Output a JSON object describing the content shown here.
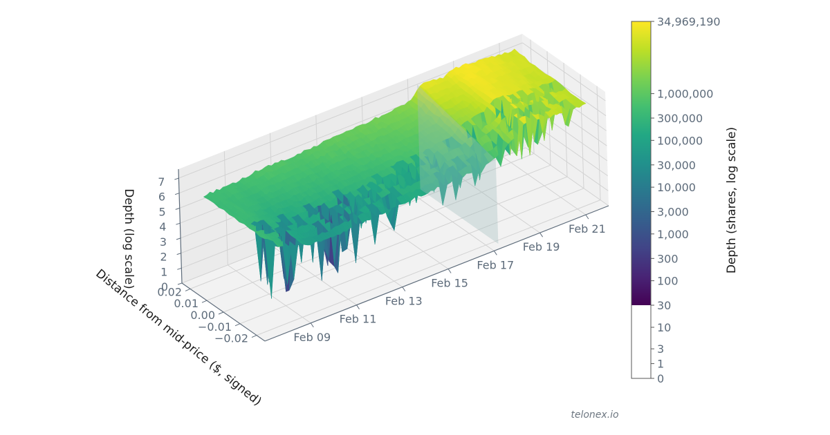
{
  "chart_data": {
    "type": "surface3d",
    "title": "",
    "x_axis": {
      "label": "",
      "ticks": [
        "Feb 09",
        "Feb 11",
        "Feb 13",
        "Feb 15",
        "Feb 17",
        "Feb 19",
        "Feb 21"
      ],
      "range": [
        "Feb 07",
        "Feb 22"
      ]
    },
    "y_axis": {
      "label": "Distance from mid-price ($, signed)",
      "ticks": [
        "0.02",
        "0.01",
        "0.00",
        "−0.01",
        "−0.02"
      ],
      "range": [
        -0.025,
        0.025
      ]
    },
    "z_axis": {
      "label": "Depth (log scale)",
      "ticks": [
        "0",
        "1",
        "2",
        "3",
        "4",
        "5",
        "6",
        "7"
      ],
      "range": [
        0,
        7.6
      ]
    },
    "surface_profile": {
      "x_days": [
        0,
        1.5,
        2.5,
        4,
        5,
        6,
        7,
        8,
        9,
        9.5,
        10,
        10.5,
        11,
        12,
        13,
        14
      ],
      "far_side_depth": [
        5.6,
        5.7,
        5.9,
        5.9,
        6.0,
        6.1,
        6.2,
        6.3,
        6.5,
        7.3,
        7.3,
        7.2,
        7.5,
        7.4,
        7.2,
        7.1
      ],
      "near_side_depth": [
        5.6,
        4.8,
        4.7,
        4.9,
        5.0,
        5.1,
        5.2,
        5.3,
        5.4,
        5.7,
        6.0,
        6.5,
        7.3,
        7.0,
        6.9,
        6.8
      ],
      "spike_min_depth": [
        1.5,
        1.2,
        1.0,
        2.0,
        3.0,
        3.0,
        3.5,
        3.5,
        3.8,
        3.8,
        4.5,
        4.5,
        4.0,
        4.5,
        4.8,
        4.8
      ]
    },
    "colorbar": {
      "label": "Depth (shares, log scale)",
      "colormap": "viridis",
      "ticks": [
        "34,969,190",
        "1,000,000",
        "300,000",
        "100,000",
        "30,000",
        "10,000",
        "3,000",
        "1,000",
        "300",
        "100",
        "30",
        "10",
        "3",
        "1",
        "0"
      ],
      "max_value": 34969190,
      "colored_min_value": 30,
      "colored_max_log": 7.544
    },
    "grid": true,
    "legend": "none"
  },
  "watermark": "telonex.io"
}
